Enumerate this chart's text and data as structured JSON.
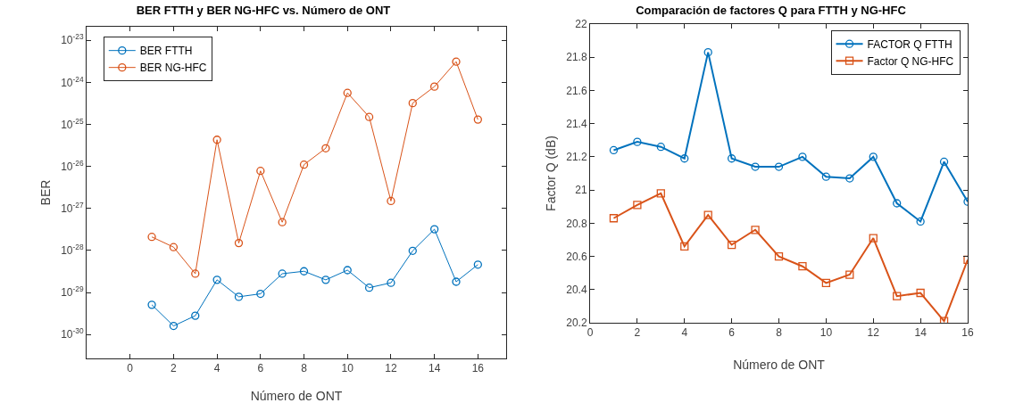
{
  "chart_data": [
    {
      "type": "line",
      "title": "BER FTTH y BER NG-HFC vs. Número de ONT",
      "xlabel": "Número de ONT",
      "ylabel": "BER",
      "x": [
        1,
        2,
        3,
        4,
        5,
        6,
        7,
        8,
        9,
        10,
        11,
        12,
        13,
        14,
        15,
        16
      ],
      "series": [
        {
          "name": "BER FTTH",
          "color": "#0072bd",
          "marker": "circle",
          "values": [
            5.1e-30,
            1.6e-30,
            2.8e-30,
            2e-29,
            7.9e-30,
            9.3e-30,
            2.8e-29,
            3.2e-29,
            2e-29,
            3.4e-29,
            1.3e-29,
            1.7e-29,
            9.8e-29,
            3.2e-28,
            1.8e-29,
            4.6e-29
          ]
        },
        {
          "name": "BER NG-HFC",
          "color": "#d95319",
          "marker": "circle",
          "values": [
            2.1e-28,
            1.2e-28,
            2.8e-29,
            4.3e-26,
            1.5e-28,
            7.8e-27,
            4.7e-28,
            1.1e-26,
            2.7e-26,
            5.6e-25,
            1.5e-25,
            1.5e-27,
            3.2e-25,
            7.9e-25,
            3.1e-24,
            1.3e-25
          ]
        }
      ],
      "log": "y",
      "xlim": [
        -2,
        17.3
      ],
      "xticks": [
        0,
        2,
        4,
        6,
        8,
        10,
        12,
        14,
        16
      ],
      "ylim": [
        2.7e-31,
        2.1e-23
      ],
      "yticks": [
        {
          "value": 1e-30,
          "label": "10$^{-30}$"
        },
        {
          "value": 1e-29,
          "label": "10$^{-29}$"
        },
        {
          "value": 1e-28,
          "label": "10$^{-28}$"
        },
        {
          "value": 1e-27,
          "label": "10$^{-27}$"
        },
        {
          "value": 1e-26,
          "label": "10$^{-26}$"
        },
        {
          "value": 1e-25,
          "label": "10$^{-25}$"
        },
        {
          "value": 1e-24,
          "label": "10$^{-24}$"
        },
        {
          "value": 1e-23,
          "label": "10$^{-23}$"
        }
      ],
      "grid": false,
      "legend": "top left"
    },
    {
      "type": "line",
      "title": "Comparación de factores Q para FTTH y NG-HFC",
      "xlabel": "Número de ONT",
      "ylabel": "Factor Q (dB)",
      "x": [
        1,
        2,
        3,
        4,
        5,
        6,
        7,
        8,
        9,
        10,
        11,
        12,
        13,
        14,
        15,
        16
      ],
      "series": [
        {
          "name": "FACTOR Q FTTH",
          "color": "#0072bd",
          "marker": "circle",
          "values": [
            21.24,
            21.29,
            21.26,
            21.19,
            21.83,
            21.19,
            21.14,
            21.14,
            21.2,
            21.08,
            21.07,
            21.2,
            20.92,
            20.81,
            21.17,
            20.93
          ]
        },
        {
          "name": "Factor Q NG-HFC",
          "color": "#d95319",
          "marker": "square",
          "values": [
            20.83,
            20.91,
            20.98,
            20.66,
            20.85,
            20.67,
            20.76,
            20.6,
            20.54,
            20.44,
            20.49,
            20.71,
            20.36,
            20.38,
            20.21,
            20.58
          ]
        }
      ],
      "xlim": [
        0,
        16
      ],
      "xticks": [
        0,
        2,
        4,
        6,
        8,
        10,
        12,
        14,
        16
      ],
      "ylim": [
        20.2,
        22
      ],
      "yticks": [
        20.2,
        20.4,
        20.6,
        20.8,
        21,
        21.2,
        21.4,
        21.6,
        21.8,
        22
      ],
      "grid": false,
      "legend": "top right"
    }
  ]
}
